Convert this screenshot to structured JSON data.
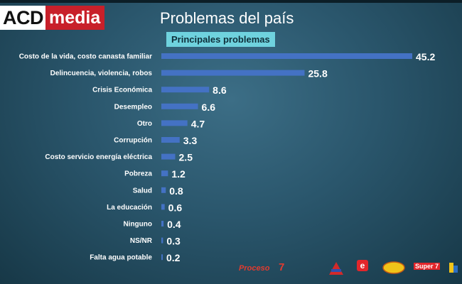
{
  "header": {
    "logo_left": "ACD",
    "logo_right": "media",
    "title": "Problemas del país",
    "subtitle": "Principales problemas"
  },
  "chart_data": {
    "type": "bar",
    "orientation": "horizontal",
    "title": "Problemas del país",
    "subtitle": "Principales problemas",
    "categories": [
      "Costo de la vida, costo canasta familiar",
      "Delincuencia, violencia, robos",
      "Crisis Económica",
      "Desempleo",
      "Otro",
      "Corrupción",
      "Costo servicio energía eléctrica",
      "Pobreza",
      "Salud",
      "La educación",
      "Ninguno",
      "NS/NR",
      "Falta agua potable"
    ],
    "values": [
      45.2,
      25.8,
      8.6,
      6.6,
      4.7,
      3.3,
      2.5,
      1.2,
      0.8,
      0.6,
      0.4,
      0.3,
      0.2
    ],
    "value_labels": [
      "45.2",
      "25.8",
      "8.6",
      "6.6",
      "4.7",
      "3.3",
      "2.5",
      "1.2",
      "0.8",
      "0.6",
      "0.4",
      "0.3",
      "0.2"
    ],
    "xlim": [
      0,
      45.2
    ],
    "grid": false,
    "legend": "none",
    "bar_color": "#4472c4",
    "label_color": "#ffffff"
  },
  "footer": {
    "logos": [
      "Proceso",
      "7",
      "e",
      "Super 7"
    ]
  }
}
